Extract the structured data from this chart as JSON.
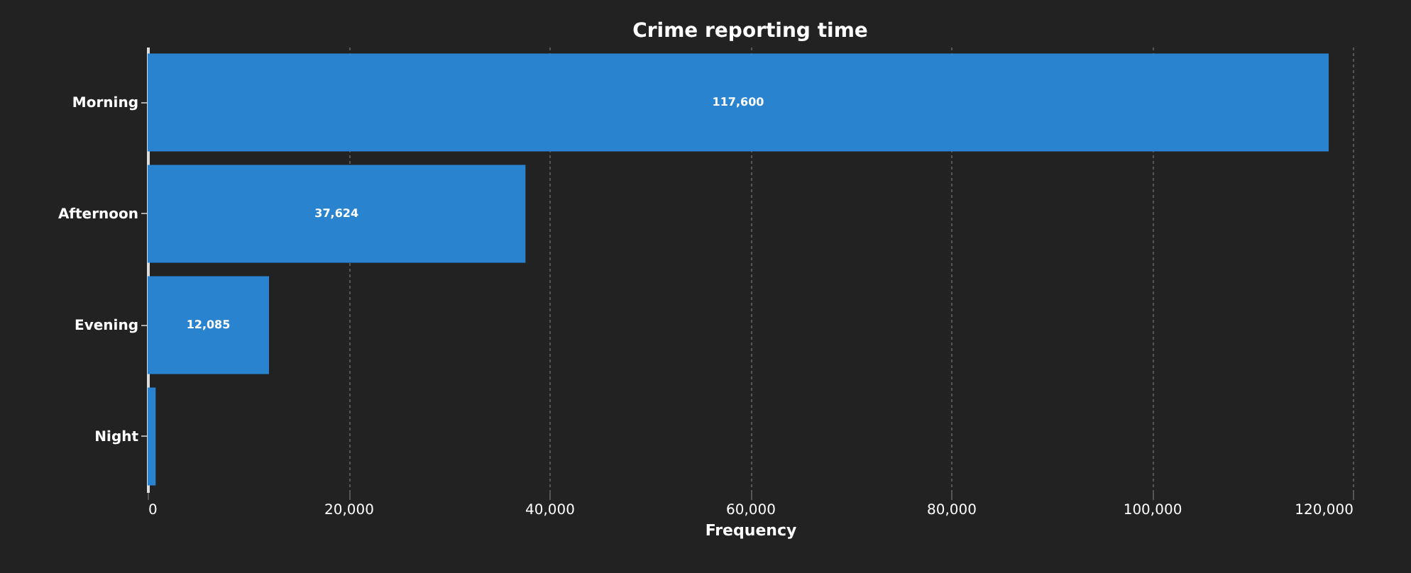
{
  "chart_data": {
    "type": "bar",
    "orientation": "horizontal",
    "title": "Crime reporting time",
    "xlabel": "Frequency",
    "categories": [
      "Morning",
      "Afternoon",
      "Evening",
      "Night"
    ],
    "values": [
      117600,
      37624,
      12085,
      800
    ],
    "value_labels": [
      "117,600",
      "37,624",
      "12,085",
      null
    ],
    "color": "#2a83cf",
    "xlim": [
      0,
      120000
    ],
    "xticks": [
      0,
      {
        "value": 20000,
        "label": "20,000"
      },
      {
        "value": 40000,
        "label": "40,000"
      },
      {
        "value": 60000,
        "label": "60,000"
      },
      {
        "value": 80000,
        "label": "80,000"
      },
      {
        "value": 100000,
        "label": "100,000"
      },
      {
        "value": 120000,
        "label": "120,000"
      }
    ],
    "grid": "x"
  }
}
